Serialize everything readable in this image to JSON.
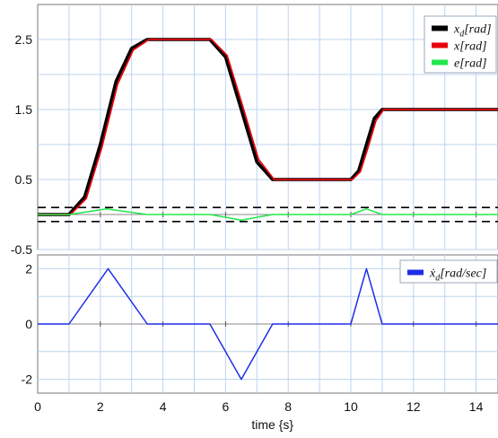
{
  "chart_data": [
    {
      "type": "line",
      "title": "",
      "xlabel": "",
      "ylabel": "",
      "xlim": [
        0,
        15
      ],
      "ylim": [
        -0.5,
        3.0
      ],
      "yticks": [
        "2.5",
        "1.5",
        "0.5",
        "-0.5"
      ],
      "grid": true,
      "legend": {
        "position": "top-right"
      },
      "series": [
        {
          "name": "x_d[rad]",
          "legend_base": "x",
          "legend_sub": "d",
          "legend_unit": "[rad]",
          "color": "#000000",
          "x": [
            0,
            1.0,
            1.5,
            2.0,
            2.5,
            3.0,
            3.5,
            5.5,
            6.0,
            6.5,
            7.0,
            7.5,
            10.0,
            10.25,
            10.5,
            10.75,
            11.0,
            15.0
          ],
          "y": [
            0,
            0,
            0.25,
            1.0,
            1.9,
            2.375,
            2.5,
            2.5,
            2.25,
            1.5,
            0.75,
            0.5,
            0.5,
            0.625,
            1.0,
            1.375,
            1.5,
            1.5
          ]
        },
        {
          "name": "x[rad]",
          "legend_base": "x",
          "legend_sub": "",
          "legend_unit": "[rad]",
          "color": "#e8000b",
          "x": [
            0,
            1.05,
            1.55,
            2.05,
            2.55,
            3.05,
            3.55,
            5.55,
            6.05,
            6.55,
            7.05,
            7.55,
            10.05,
            10.3,
            10.55,
            10.8,
            11.05,
            15.0
          ],
          "y": [
            0,
            0,
            0.23,
            0.96,
            1.86,
            2.35,
            2.5,
            2.5,
            2.27,
            1.54,
            0.79,
            0.5,
            0.5,
            0.61,
            0.96,
            1.34,
            1.5,
            1.5
          ]
        },
        {
          "name": "e[rad]",
          "legend_base": "e",
          "legend_sub": "",
          "legend_unit": "[rad]",
          "color": "#22e84b",
          "x": [
            0,
            1.0,
            2.2,
            3.5,
            5.5,
            6.5,
            7.5,
            10.0,
            10.5,
            11.0,
            15.0
          ],
          "y": [
            0,
            0,
            0.08,
            0,
            0,
            -0.08,
            0,
            0,
            0.08,
            0,
            0
          ]
        }
      ],
      "reference_lines": [
        {
          "y": 0.1,
          "style": "dashed",
          "color": "#000000"
        },
        {
          "y": -0.1,
          "style": "dashed",
          "color": "#000000"
        }
      ]
    },
    {
      "type": "line",
      "title": "",
      "xlabel": "time {s}",
      "ylabel": "",
      "xlim": [
        0,
        15
      ],
      "ylim": [
        -2.5,
        2.5
      ],
      "xticks": [
        "0",
        "2",
        "4",
        "6",
        "8",
        "10",
        "12",
        "14"
      ],
      "yticks": [
        "2",
        "0",
        "-2"
      ],
      "grid": true,
      "legend": {
        "position": "top-right"
      },
      "series": [
        {
          "name": "ẋ_d[rad/sec]",
          "legend_base": "ẋ",
          "legend_sub": "d",
          "legend_unit": "[rad/sec]",
          "color": "#1f2ee8",
          "x": [
            0,
            1.0,
            2.25,
            3.5,
            5.5,
            6.5,
            7.5,
            10.0,
            10.5,
            11.0,
            15.0
          ],
          "y": [
            0,
            0,
            2,
            0,
            0,
            -2,
            0,
            0,
            2,
            0,
            0
          ]
        }
      ]
    }
  ]
}
